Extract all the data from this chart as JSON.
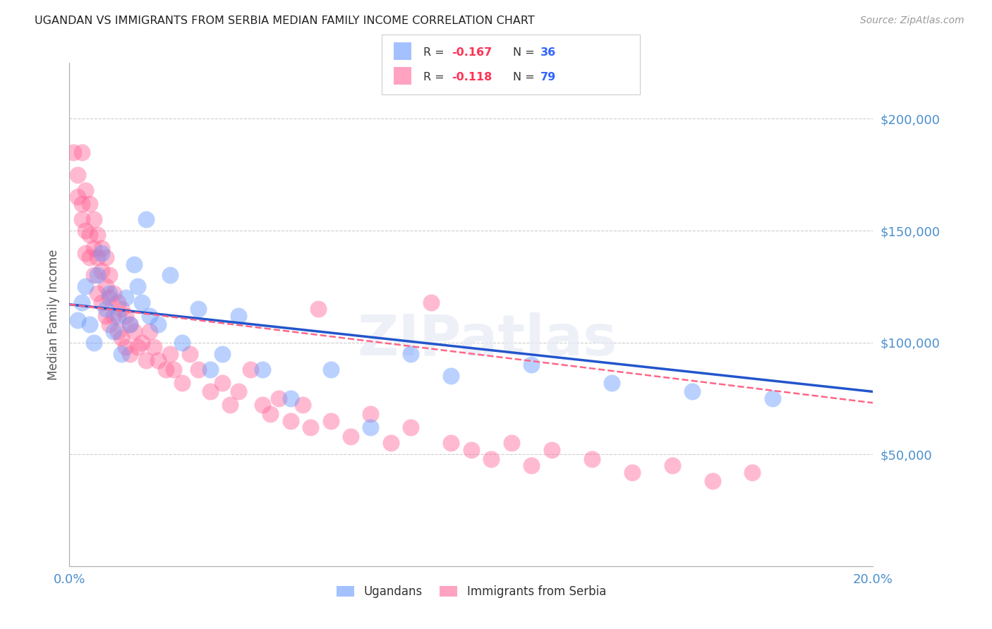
{
  "title": "UGANDAN VS IMMIGRANTS FROM SERBIA MEDIAN FAMILY INCOME CORRELATION CHART",
  "source": "Source: ZipAtlas.com",
  "ylabel": "Median Family Income",
  "xlim": [
    0.0,
    0.2
  ],
  "ylim": [
    0,
    225000
  ],
  "ytick_vals": [
    50000,
    100000,
    150000,
    200000
  ],
  "ytick_labels": [
    "$50,000",
    "$100,000",
    "$150,000",
    "$200,000"
  ],
  "xticks": [
    0.0,
    0.05,
    0.1,
    0.15,
    0.2
  ],
  "xtick_labels": [
    "0.0%",
    "",
    "",
    "",
    "20.0%"
  ],
  "background_color": "#ffffff",
  "grid_color": "#cccccc",
  "scatter_blue_color": "#6699ff",
  "scatter_pink_color": "#ff6699",
  "line_blue_color": "#2255cc",
  "line_pink_color": "#ff6688",
  "tick_label_color": "#4d8fcc",
  "ugandans_x": [
    0.002,
    0.003,
    0.004,
    0.005,
    0.006,
    0.007,
    0.008,
    0.009,
    0.01,
    0.011,
    0.012,
    0.013,
    0.014,
    0.015,
    0.016,
    0.017,
    0.018,
    0.019,
    0.02,
    0.022,
    0.025,
    0.028,
    0.032,
    0.035,
    0.038,
    0.042,
    0.048,
    0.055,
    0.065,
    0.075,
    0.085,
    0.095,
    0.115,
    0.135,
    0.155,
    0.175
  ],
  "ugandans_y": [
    110000,
    118000,
    125000,
    108000,
    100000,
    130000,
    140000,
    115000,
    122000,
    105000,
    112000,
    95000,
    120000,
    108000,
    135000,
    125000,
    118000,
    155000,
    112000,
    108000,
    130000,
    100000,
    115000,
    88000,
    95000,
    112000,
    88000,
    75000,
    88000,
    62000,
    95000,
    85000,
    90000,
    82000,
    78000,
    75000
  ],
  "serbia_x": [
    0.001,
    0.002,
    0.002,
    0.003,
    0.003,
    0.003,
    0.004,
    0.004,
    0.004,
    0.005,
    0.005,
    0.005,
    0.006,
    0.006,
    0.006,
    0.007,
    0.007,
    0.007,
    0.008,
    0.008,
    0.008,
    0.009,
    0.009,
    0.009,
    0.01,
    0.01,
    0.01,
    0.011,
    0.011,
    0.012,
    0.012,
    0.013,
    0.013,
    0.014,
    0.014,
    0.015,
    0.015,
    0.016,
    0.017,
    0.018,
    0.019,
    0.02,
    0.021,
    0.022,
    0.024,
    0.025,
    0.026,
    0.028,
    0.03,
    0.032,
    0.035,
    0.038,
    0.04,
    0.042,
    0.045,
    0.048,
    0.05,
    0.052,
    0.055,
    0.058,
    0.06,
    0.062,
    0.065,
    0.07,
    0.075,
    0.08,
    0.085,
    0.09,
    0.095,
    0.1,
    0.105,
    0.11,
    0.115,
    0.12,
    0.13,
    0.14,
    0.15,
    0.16,
    0.17
  ],
  "serbia_y": [
    185000,
    175000,
    165000,
    185000,
    162000,
    155000,
    168000,
    150000,
    140000,
    162000,
    148000,
    138000,
    155000,
    142000,
    130000,
    148000,
    138000,
    122000,
    142000,
    132000,
    118000,
    138000,
    125000,
    112000,
    130000,
    120000,
    108000,
    122000,
    112000,
    118000,
    105000,
    115000,
    102000,
    112000,
    98000,
    108000,
    95000,
    105000,
    98000,
    100000,
    92000,
    105000,
    98000,
    92000,
    88000,
    95000,
    88000,
    82000,
    95000,
    88000,
    78000,
    82000,
    72000,
    78000,
    88000,
    72000,
    68000,
    75000,
    65000,
    72000,
    62000,
    115000,
    65000,
    58000,
    68000,
    55000,
    62000,
    118000,
    55000,
    52000,
    48000,
    55000,
    45000,
    52000,
    48000,
    42000,
    45000,
    38000,
    42000
  ],
  "blue_line_x0": 0.0,
  "blue_line_y0": 117000,
  "blue_line_x1": 0.2,
  "blue_line_y1": 78000,
  "pink_line_x0": 0.0,
  "pink_line_y0": 117000,
  "pink_line_x1": 0.2,
  "pink_line_y1": 73000
}
